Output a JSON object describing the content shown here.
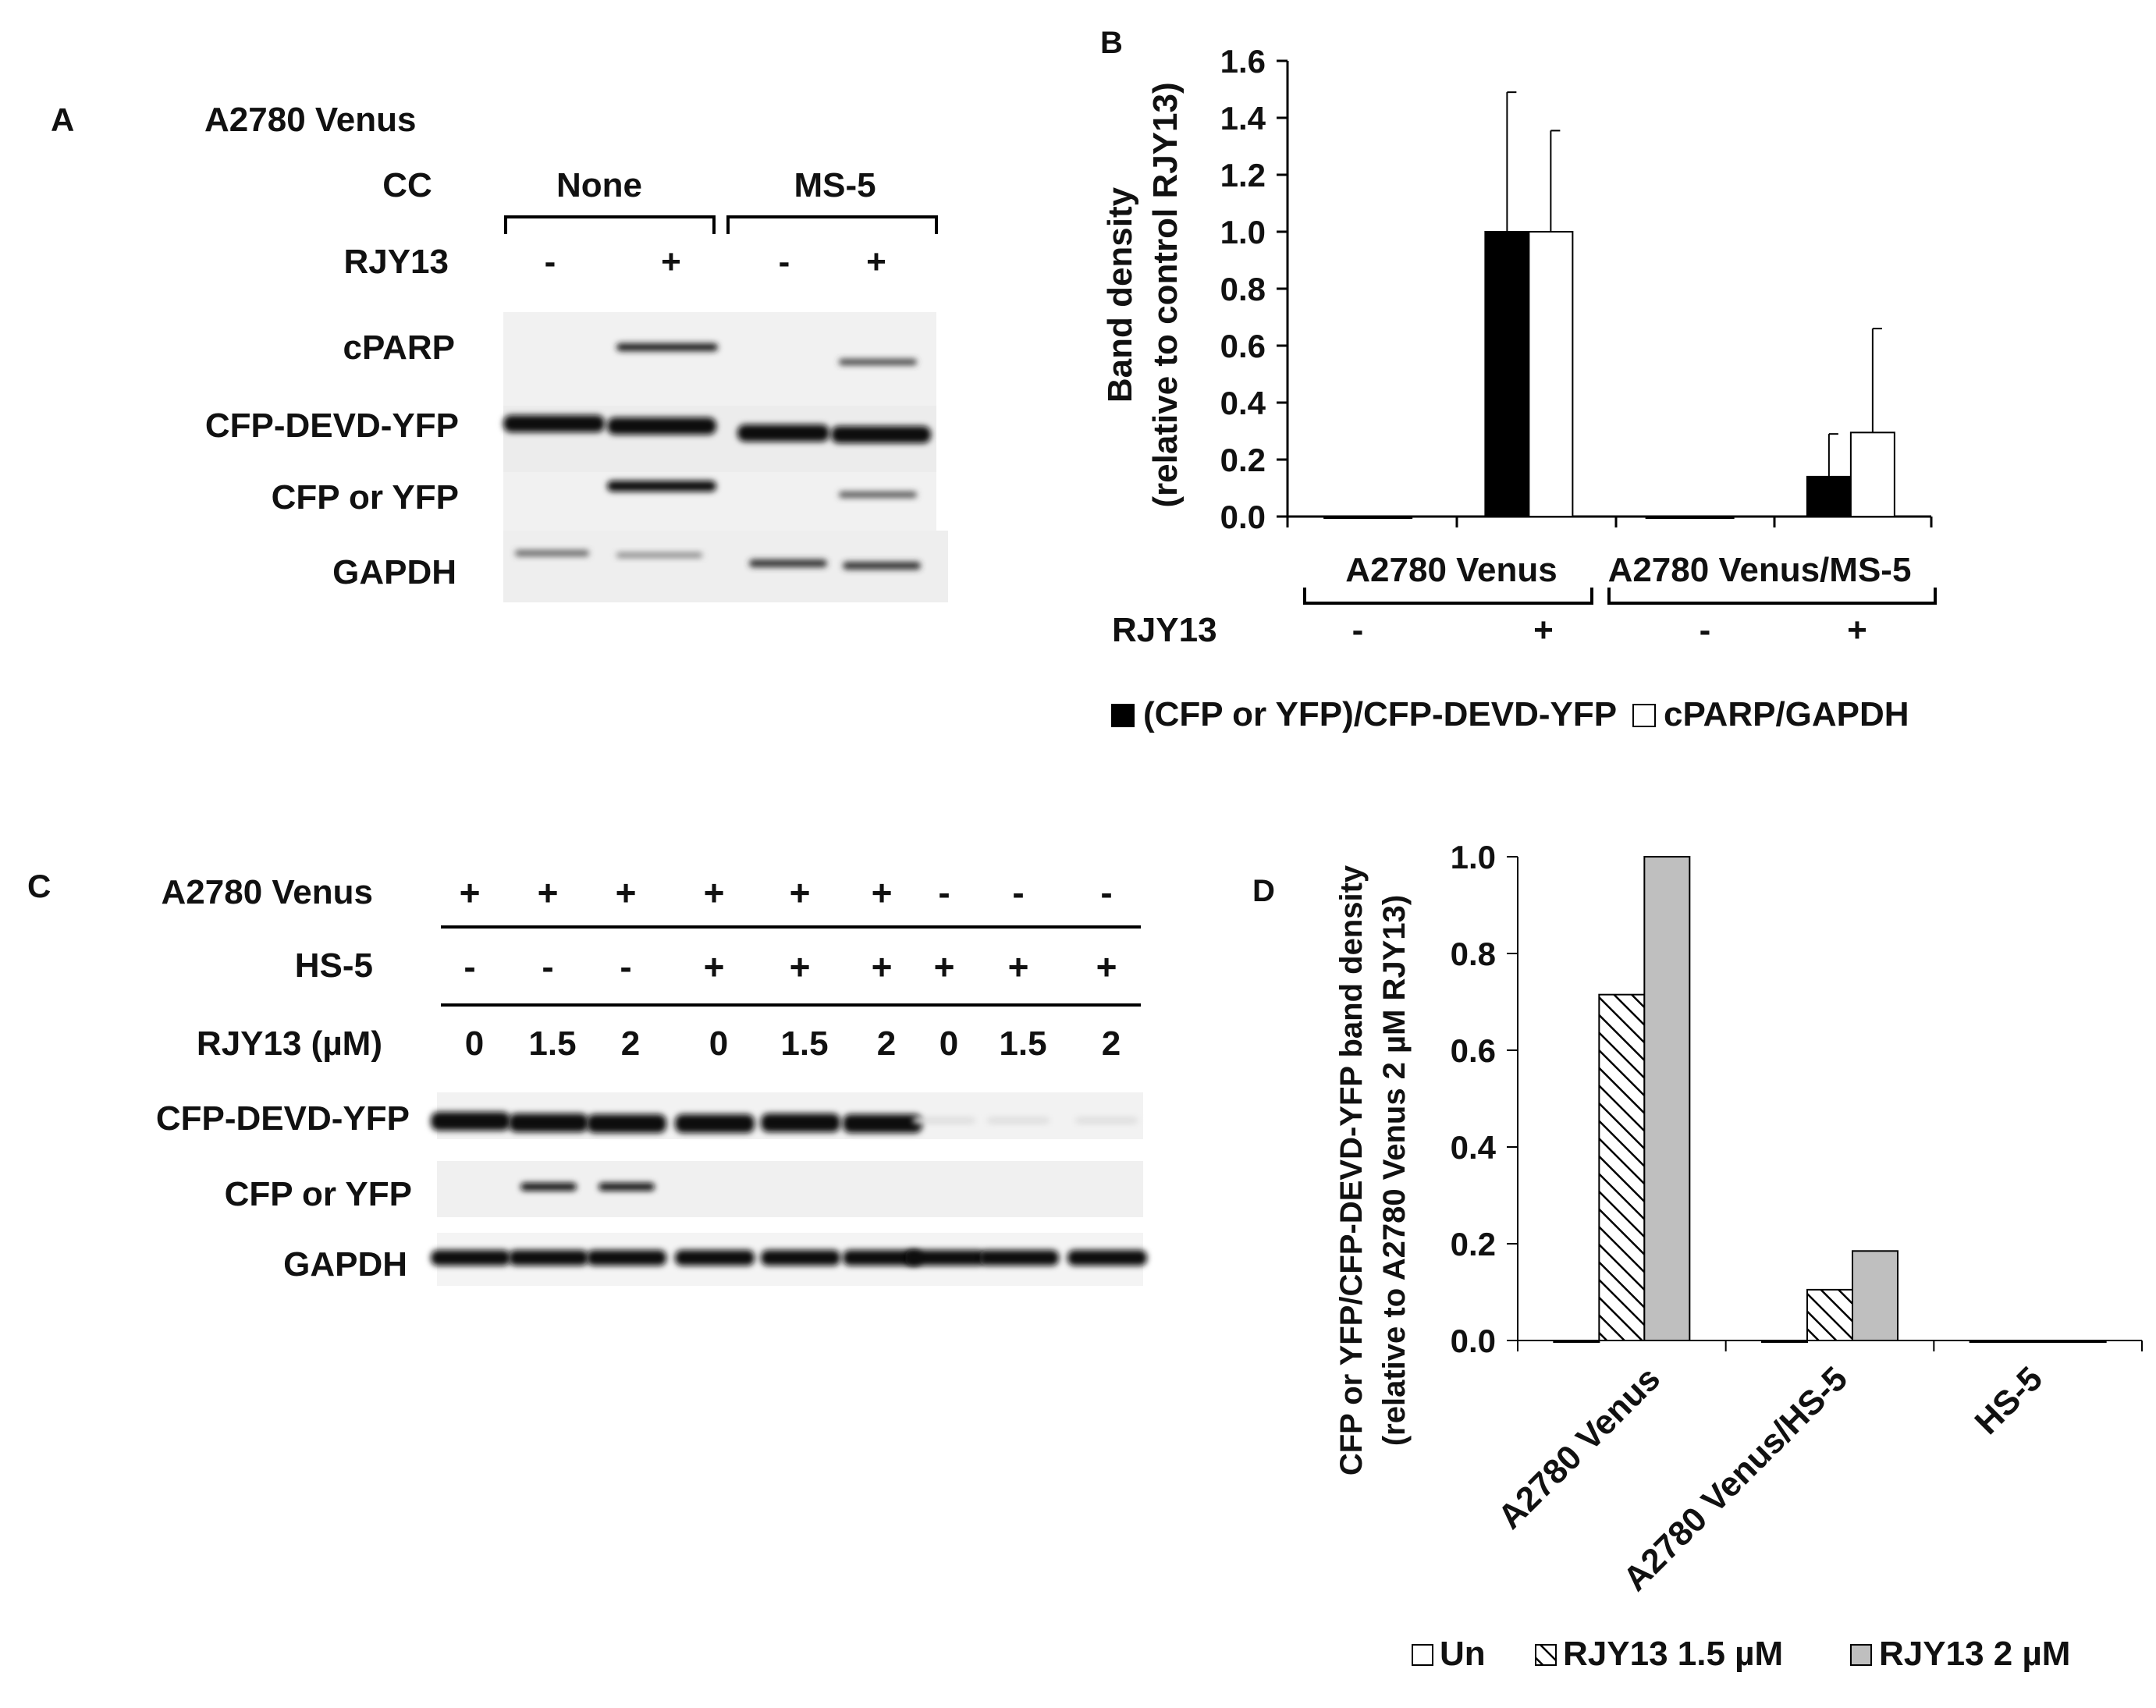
{
  "panels": {
    "A": {
      "letter": "A",
      "cell_line": "A2780 Venus",
      "cc_label": "CC",
      "group_labels": [
        "None",
        "MS-5"
      ],
      "rjy_label": "RJY13",
      "lane_signs": [
        "-",
        "+",
        "-",
        "+"
      ],
      "row_labels": [
        "cPARP",
        "CFP-DEVD-YFP",
        "CFP or YFP",
        "GAPDH"
      ]
    },
    "C": {
      "letter": "C",
      "row_labels": [
        "A2780 Venus",
        "HS-5",
        "RJY13  (µM)"
      ],
      "a2780_signs": [
        "+",
        "+",
        "+",
        "+",
        "+",
        "+",
        "-",
        "-",
        "-"
      ],
      "hs5_signs": [
        "-",
        "-",
        "-",
        "+",
        "+",
        "+",
        "+",
        "+",
        "+"
      ],
      "rjy_doses": [
        "0",
        "1.5",
        "2",
        "0",
        "1.5",
        "2",
        "0",
        "1.5",
        "2"
      ],
      "blot_labels": [
        "CFP-DEVD-YFP",
        "CFP or YFP",
        "GAPDH"
      ],
      "highlight_color": "#ee1c25"
    }
  },
  "chart_data": [
    {
      "panel": "B",
      "type": "bar",
      "ylabel": [
        "Band density",
        "(relative to control RJY13)"
      ],
      "ylim": [
        0,
        1.6
      ],
      "yticks": [
        "0.0",
        "0.2",
        "0.4",
        "0.6",
        "0.8",
        "1.0",
        "1.2",
        "1.4",
        "1.6"
      ],
      "groups": [
        "A2780 Venus",
        "A2780 Venus/MS-5"
      ],
      "treatment_label": "RJY13",
      "treatment_signs": [
        "-",
        "+",
        "-",
        "+"
      ],
      "series": [
        {
          "name": "(CFP or YFP)/CFP-DEVD-YFP",
          "color": "#000000",
          "values": [
            0.0,
            1.0,
            0.0,
            0.14
          ],
          "errors": [
            0,
            0.49,
            0,
            0.15
          ]
        },
        {
          "name": "cPARP/GAPDH",
          "color": "#ffffff",
          "values": [
            0.0,
            1.0,
            0.0,
            0.295
          ],
          "errors": [
            0,
            0.355,
            0,
            0.365
          ]
        }
      ]
    },
    {
      "panel": "D",
      "type": "bar",
      "ylabel": [
        "CFP or YFP/CFP-DEVD-YFP band density",
        "(relative to A2780 Venus 2 µM RJY13)"
      ],
      "ylim": [
        0,
        1.0
      ],
      "yticks": [
        "0.0",
        "0.2",
        "0.4",
        "0.6",
        "0.8",
        "1.0"
      ],
      "categories": [
        "A2780 Venus",
        "A2780 Venus/HS-5",
        "HS-5"
      ],
      "series": [
        {
          "name": "Un",
          "fill": "white",
          "values": [
            0,
            0,
            0
          ]
        },
        {
          "name": "RJY13 1.5 µM",
          "fill": "hatch",
          "values": [
            0.715,
            0.105,
            0
          ]
        },
        {
          "name": "RJY13 2 µM",
          "fill": "#bfbfbf",
          "values": [
            1.0,
            0.185,
            0
          ]
        }
      ]
    }
  ]
}
